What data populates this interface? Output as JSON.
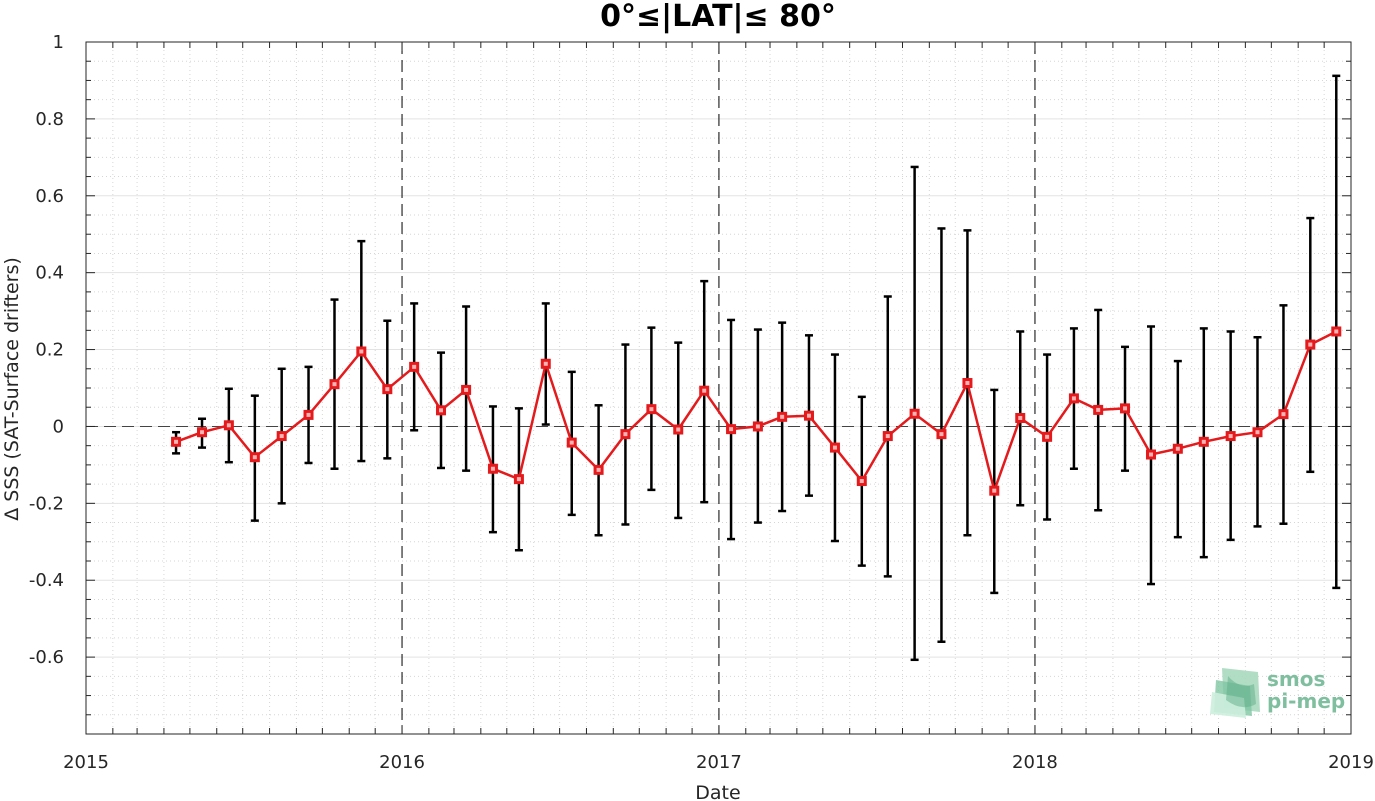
{
  "chart_data": {
    "type": "line",
    "title": "0°≤|LAT|≤ 80°",
    "xlabel": "Date",
    "ylabel": "Δ SSS (SAT-Surface drifters)",
    "xlim": [
      "2015-01-01",
      "2019-01-01"
    ],
    "ylim": [
      -0.8,
      1.0
    ],
    "x_ticks": [
      "2015",
      "2016",
      "2017",
      "2018",
      "2019"
    ],
    "y_ticks": [
      "-0.6",
      "-0.4",
      "-0.2",
      "0",
      "0.2",
      "0.4",
      "0.6",
      "0.8",
      "1"
    ],
    "grid": true,
    "zero_line": 0,
    "year_lines": [
      "2016",
      "2017",
      "2018"
    ],
    "series": [
      {
        "color": "#e41a1c",
        "errorbar_color": "#000000",
        "x": [
          "2015-04-15",
          "2015-05-15",
          "2015-06-15",
          "2015-07-15",
          "2015-08-15",
          "2015-09-15",
          "2015-10-15",
          "2015-11-15",
          "2015-12-15",
          "2016-01-15",
          "2016-02-15",
          "2016-03-15",
          "2016-04-15",
          "2016-05-15",
          "2016-06-15",
          "2016-07-15",
          "2016-08-15",
          "2016-09-15",
          "2016-10-15",
          "2016-11-15",
          "2016-12-15",
          "2017-01-15",
          "2017-02-15",
          "2017-03-15",
          "2017-04-15",
          "2017-05-15",
          "2017-06-15",
          "2017-07-15",
          "2017-08-15",
          "2017-09-15",
          "2017-10-15",
          "2017-11-15",
          "2017-12-15",
          "2018-01-15",
          "2018-02-15",
          "2018-03-15",
          "2018-04-15",
          "2018-05-15",
          "2018-06-15",
          "2018-07-15",
          "2018-08-15",
          "2018-09-15",
          "2018-10-15",
          "2018-11-15",
          "2018-12-15"
        ],
        "y": [
          -0.04,
          -0.015,
          0.003,
          -0.08,
          -0.025,
          0.03,
          0.11,
          0.195,
          0.097,
          0.155,
          0.042,
          0.095,
          -0.11,
          -0.137,
          0.163,
          -0.042,
          -0.113,
          -0.02,
          0.045,
          -0.008,
          0.093,
          -0.007,
          0.0,
          0.025,
          0.028,
          -0.055,
          -0.142,
          -0.025,
          0.033,
          -0.02,
          0.113,
          -0.167,
          0.022,
          -0.027,
          0.073,
          0.043,
          0.047,
          -0.073,
          -0.058,
          -0.04,
          -0.025,
          -0.015,
          0.032,
          0.213,
          0.247
        ],
        "y_low": [
          -0.07,
          -0.055,
          -0.093,
          -0.245,
          -0.2,
          -0.095,
          -0.11,
          -0.09,
          -0.083,
          -0.01,
          -0.108,
          -0.115,
          -0.275,
          -0.322,
          0.005,
          -0.23,
          -0.283,
          -0.255,
          -0.165,
          -0.238,
          -0.197,
          -0.293,
          -0.25,
          -0.22,
          -0.18,
          -0.298,
          -0.362,
          -0.39,
          -0.607,
          -0.56,
          -0.283,
          -0.433,
          -0.205,
          -0.242,
          -0.11,
          -0.218,
          -0.115,
          -0.41,
          -0.288,
          -0.34,
          -0.295,
          -0.26,
          -0.253,
          -0.118,
          -0.42
        ],
        "y_high": [
          -0.015,
          0.02,
          0.098,
          0.08,
          0.15,
          0.155,
          0.33,
          0.482,
          0.275,
          0.32,
          0.192,
          0.312,
          0.052,
          0.047,
          0.32,
          0.142,
          0.055,
          0.213,
          0.257,
          0.218,
          0.378,
          0.277,
          0.252,
          0.27,
          0.237,
          0.187,
          0.077,
          0.338,
          0.675,
          0.515,
          0.51,
          0.095,
          0.247,
          0.187,
          0.255,
          0.303,
          0.207,
          0.26,
          0.17,
          0.255,
          0.247,
          0.232,
          0.315,
          0.542,
          0.912
        ]
      }
    ]
  },
  "logo": {
    "line1": "smos",
    "line2": "pi-mep",
    "color": "#7fbf9f"
  }
}
